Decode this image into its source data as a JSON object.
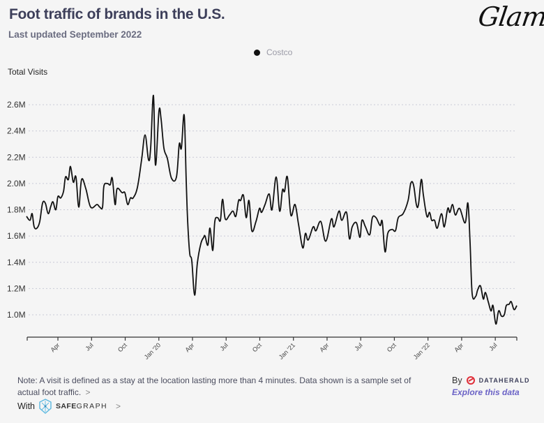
{
  "header": {
    "title": "Foot traffic of brands in the U.S.",
    "subtitle": "Last updated September 2022",
    "logo_text": "Glam"
  },
  "legend": {
    "items": [
      {
        "label": "Costco",
        "color": "#111111"
      }
    ]
  },
  "footer": {
    "note": "Note: A visit is defined as a stay at the location lasting more than 4 minutes. Data shown is a sample set of actual foot traffic.",
    "note_chevron": ">",
    "with_label": "With",
    "safegraph_bold": "SAFE",
    "safegraph_rest": "GRAPH",
    "safegraph_chevron": ">",
    "by_label": "By",
    "dataherald_label": "DATAHERALD",
    "explore_label": "Explore this data",
    "explore_color": "#6b63c6"
  },
  "chart_data": {
    "type": "line",
    "title": "Foot traffic of brands in the U.S.",
    "subtitle": "Last updated September 2022",
    "ylabel": "Total Visits",
    "xlabel": "",
    "y_unit": "millions",
    "ylim": [
      0.83,
      2.75
    ],
    "yticks": [
      1.0,
      1.2,
      1.4,
      1.6,
      1.8,
      2.0,
      2.2,
      2.4,
      2.6
    ],
    "ytick_labels": [
      "1.0M",
      "1.2M",
      "1.4M",
      "1.6M",
      "1.8M",
      "2.0M",
      "2.2M",
      "2.4M",
      "2.6M"
    ],
    "grid": "horizontal-dotted",
    "x_unit": "months since 2019-01-01",
    "xlim": [
      0.33,
      43.93
    ],
    "xticks": [
      3,
      6,
      9,
      12,
      15,
      18,
      21,
      24,
      27,
      30,
      33,
      36,
      39,
      42
    ],
    "xtick_labels": [
      "Apr",
      "Jul",
      "Oct",
      "Jan '20",
      "Apr",
      "Jul",
      "Oct",
      "Jan '21",
      "Apr",
      "Jul",
      "Oct",
      "Jan '22",
      "Apr",
      "Jul"
    ],
    "legend_position": "top-center",
    "series": [
      {
        "name": "Costco",
        "color": "#111111",
        "points": [
          [
            0.2,
            1.75
          ],
          [
            0.51,
            1.72
          ],
          [
            0.7,
            1.77
          ],
          [
            0.88,
            1.67
          ],
          [
            1.13,
            1.66
          ],
          [
            1.38,
            1.71
          ],
          [
            1.63,
            1.85
          ],
          [
            1.88,
            1.85
          ],
          [
            2.13,
            1.77
          ],
          [
            2.38,
            1.83
          ],
          [
            2.56,
            1.86
          ],
          [
            2.81,
            1.8
          ],
          [
            3.0,
            1.9
          ],
          [
            3.25,
            1.89
          ],
          [
            3.5,
            1.94
          ],
          [
            3.68,
            2.05
          ],
          [
            3.93,
            2.03
          ],
          [
            4.12,
            2.13
          ],
          [
            4.37,
            2.01
          ],
          [
            4.61,
            2.05
          ],
          [
            4.86,
            1.82
          ],
          [
            5.11,
            2.03
          ],
          [
            5.49,
            1.96
          ],
          [
            5.92,
            1.82
          ],
          [
            6.48,
            1.84
          ],
          [
            6.73,
            1.82
          ],
          [
            6.98,
            1.82
          ],
          [
            7.1,
            1.98
          ],
          [
            7.41,
            2.0
          ],
          [
            7.66,
            1.99
          ],
          [
            7.85,
            2.04
          ],
          [
            8.1,
            1.84
          ],
          [
            8.28,
            1.96
          ],
          [
            8.72,
            1.93
          ],
          [
            8.97,
            1.93
          ],
          [
            9.22,
            1.84
          ],
          [
            9.47,
            1.89
          ],
          [
            9.71,
            1.89
          ],
          [
            10.09,
            1.97
          ],
          [
            10.46,
            2.18
          ],
          [
            10.77,
            2.37
          ],
          [
            11.08,
            2.18
          ],
          [
            11.27,
            2.27
          ],
          [
            11.52,
            2.67
          ],
          [
            11.7,
            2.14
          ],
          [
            12.01,
            2.55
          ],
          [
            12.2,
            2.49
          ],
          [
            12.45,
            2.27
          ],
          [
            12.76,
            2.19
          ],
          [
            13.13,
            2.04
          ],
          [
            13.57,
            2.05
          ],
          [
            13.82,
            2.3
          ],
          [
            14.01,
            2.27
          ],
          [
            14.26,
            2.52
          ],
          [
            14.44,
            2.02
          ],
          [
            14.57,
            1.71
          ],
          [
            14.75,
            1.47
          ],
          [
            14.94,
            1.41
          ],
          [
            15.19,
            1.15
          ],
          [
            15.43,
            1.39
          ],
          [
            15.74,
            1.54
          ],
          [
            16.0,
            1.59
          ],
          [
            16.12,
            1.6
          ],
          [
            16.37,
            1.53
          ],
          [
            16.56,
            1.66
          ],
          [
            16.81,
            1.49
          ],
          [
            16.99,
            1.71
          ],
          [
            17.24,
            1.74
          ],
          [
            17.49,
            1.72
          ],
          [
            17.68,
            1.88
          ],
          [
            17.92,
            1.73
          ],
          [
            18.3,
            1.76
          ],
          [
            18.61,
            1.79
          ],
          [
            18.86,
            1.75
          ],
          [
            19.11,
            1.87
          ],
          [
            19.29,
            1.87
          ],
          [
            19.54,
            1.91
          ],
          [
            19.79,
            1.74
          ],
          [
            20.04,
            1.87
          ],
          [
            20.29,
            1.64
          ],
          [
            20.66,
            1.71
          ],
          [
            20.97,
            1.81
          ],
          [
            21.16,
            1.78
          ],
          [
            21.47,
            1.84
          ],
          [
            21.84,
            1.92
          ],
          [
            22.09,
            1.8
          ],
          [
            22.46,
            2.05
          ],
          [
            22.77,
            1.79
          ],
          [
            23.02,
            1.95
          ],
          [
            23.21,
            1.94
          ],
          [
            23.46,
            2.05
          ],
          [
            23.77,
            1.76
          ],
          [
            24.14,
            1.84
          ],
          [
            24.45,
            1.69
          ],
          [
            24.83,
            1.51
          ],
          [
            25.07,
            1.62
          ],
          [
            25.32,
            1.57
          ],
          [
            25.76,
            1.67
          ],
          [
            26.01,
            1.64
          ],
          [
            26.44,
            1.71
          ],
          [
            26.88,
            1.56
          ],
          [
            27.38,
            1.73
          ],
          [
            27.62,
            1.67
          ],
          [
            28.06,
            1.79
          ],
          [
            28.31,
            1.72
          ],
          [
            28.74,
            1.78
          ],
          [
            28.99,
            1.58
          ],
          [
            29.24,
            1.67
          ],
          [
            29.62,
            1.7
          ],
          [
            29.93,
            1.59
          ],
          [
            30.11,
            1.72
          ],
          [
            30.42,
            1.67
          ],
          [
            30.8,
            1.61
          ],
          [
            31.04,
            1.74
          ],
          [
            31.36,
            1.74
          ],
          [
            31.73,
            1.68
          ],
          [
            31.92,
            1.71
          ],
          [
            32.17,
            1.48
          ],
          [
            32.41,
            1.62
          ],
          [
            32.79,
            1.65
          ],
          [
            33.1,
            1.64
          ],
          [
            33.35,
            1.74
          ],
          [
            33.78,
            1.77
          ],
          [
            34.22,
            1.87
          ],
          [
            34.46,
            2.0
          ],
          [
            34.71,
            1.99
          ],
          [
            34.96,
            1.84
          ],
          [
            35.15,
            1.84
          ],
          [
            35.4,
            2.03
          ],
          [
            35.59,
            1.91
          ],
          [
            35.9,
            1.75
          ],
          [
            36.14,
            1.78
          ],
          [
            36.33,
            1.72
          ],
          [
            36.58,
            1.72
          ],
          [
            36.83,
            1.66
          ],
          [
            37.2,
            1.77
          ],
          [
            37.45,
            1.67
          ],
          [
            37.76,
            1.81
          ],
          [
            37.95,
            1.78
          ],
          [
            38.19,
            1.84
          ],
          [
            38.44,
            1.76
          ],
          [
            38.82,
            1.81
          ],
          [
            39.31,
            1.7
          ],
          [
            39.56,
            1.85
          ],
          [
            39.75,
            1.55
          ],
          [
            39.94,
            1.16
          ],
          [
            40.25,
            1.14
          ],
          [
            40.43,
            1.19
          ],
          [
            40.68,
            1.22
          ],
          [
            40.93,
            1.12
          ],
          [
            41.12,
            1.17
          ],
          [
            41.37,
            1.1
          ],
          [
            41.62,
            1.03
          ],
          [
            41.8,
            1.07
          ],
          [
            42.05,
            0.93
          ],
          [
            42.3,
            1.03
          ],
          [
            42.55,
            0.99
          ],
          [
            42.8,
            1.0
          ],
          [
            42.98,
            1.07
          ],
          [
            43.23,
            1.08
          ],
          [
            43.42,
            1.1
          ],
          [
            43.67,
            1.04
          ],
          [
            43.92,
            1.07
          ]
        ]
      }
    ]
  }
}
